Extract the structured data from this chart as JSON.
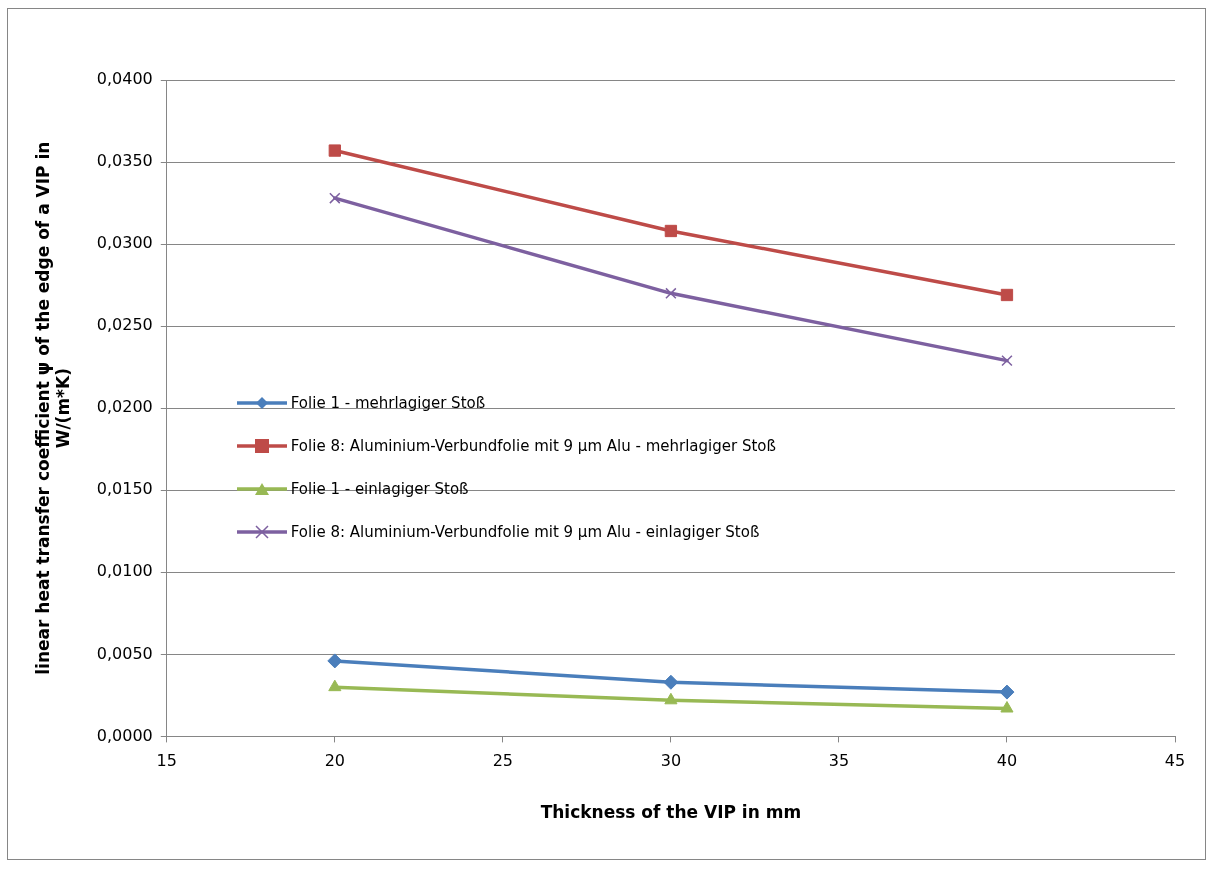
{
  "chart_data": {
    "type": "line",
    "xlabel": "Thickness of the VIP in mm",
    "ylabel": "linear heat transfer coefficient ψ of the edge of a VIP in W/(m*K)",
    "x": [
      20,
      30,
      40
    ],
    "series": [
      {
        "name": "Folie 1 - mehrlagiger Stoß",
        "color": "#4a7ebb",
        "marker": "diamond",
        "values": [
          0.0046,
          0.0033,
          0.0027
        ]
      },
      {
        "name": "Folie 8: Aluminium-Verbundfolie mit 9 µm Alu - mehrlagiger Stoß",
        "color": "#be4b48",
        "marker": "square",
        "values": [
          0.0357,
          0.0308,
          0.0269
        ]
      },
      {
        "name": "Folie 1 - einlagiger Stoß",
        "color": "#98b954",
        "marker": "triangle",
        "values": [
          0.003,
          0.0022,
          0.0017
        ]
      },
      {
        "name": "Folie 8: Aluminium-Verbundfolie mit 9 µm Alu - einlagiger Stoß",
        "color": "#7d60a0",
        "marker": "cross",
        "values": [
          0.0328,
          0.027,
          0.0229
        ]
      }
    ],
    "xlim": [
      15,
      45
    ],
    "xticks": [
      15,
      20,
      25,
      30,
      35,
      40,
      45
    ],
    "ylim": [
      0,
      0.04
    ],
    "yticks": [
      {
        "value": 0,
        "label": "0,0000"
      },
      {
        "value": 0.005,
        "label": "0,0050"
      },
      {
        "value": 0.01,
        "label": "0,0100"
      },
      {
        "value": 0.015,
        "label": "0,0150"
      },
      {
        "value": 0.02,
        "label": "0,0200"
      },
      {
        "value": 0.025,
        "label": "0,0250"
      },
      {
        "value": 0.03,
        "label": "0,0300"
      },
      {
        "value": 0.035,
        "label": "0,0350"
      },
      {
        "value": 0.04,
        "label": "0,0400"
      }
    ],
    "grid": "y",
    "legend": "left",
    "line_style": "solid"
  }
}
